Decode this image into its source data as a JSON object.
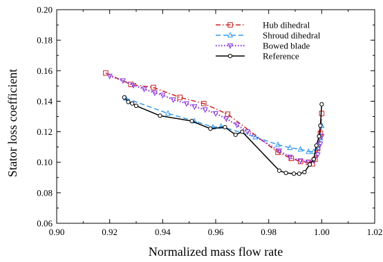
{
  "chart_data": {
    "type": "line",
    "title": "",
    "xlabel": "Normalized mass flow rate",
    "ylabel": "Stator loss coefficient",
    "xlim": [
      0.9,
      1.02
    ],
    "ylim": [
      0.06,
      0.2
    ],
    "xticks": [
      0.9,
      0.92,
      0.94,
      0.96,
      0.98,
      1.0,
      1.02
    ],
    "yticks": [
      0.06,
      0.08,
      0.1,
      0.12,
      0.14,
      0.16,
      0.18,
      0.2
    ],
    "xtick_labels": [
      "0.90",
      "0.92",
      "0.94",
      "0.96",
      "0.98",
      "1.00",
      "1.02"
    ],
    "ytick_labels": [
      "0.06",
      "0.08",
      "0.10",
      "0.12",
      "0.14",
      "0.16",
      "0.18",
      "0.20"
    ],
    "grid": false,
    "legend_position": "top-right",
    "series": [
      {
        "name": "Hub dihedral",
        "color": "#cc2222",
        "dash": "dashdot",
        "marker": "square",
        "x": [
          0.9185,
          0.928,
          0.9365,
          0.9465,
          0.9555,
          0.9645,
          0.9835,
          0.9885,
          0.992,
          0.995,
          0.9965,
          0.9975,
          0.9985,
          0.9995,
          1.0
        ],
        "y": [
          0.1585,
          0.151,
          0.149,
          0.1425,
          0.1385,
          0.1315,
          0.1065,
          0.1025,
          0.1005,
          0.1,
          0.099,
          0.102,
          0.109,
          0.119,
          0.132
        ]
      },
      {
        "name": "Shroud dihedral",
        "color": "#3399ee",
        "dash": "dashed",
        "marker": "triangle",
        "x": [
          0.926,
          0.942,
          0.952,
          0.959,
          0.962,
          0.975,
          0.9835,
          0.988,
          0.992,
          0.995,
          0.997,
          0.9985,
          0.9995,
          1.0
        ],
        "y": [
          0.142,
          0.132,
          0.127,
          0.123,
          0.1235,
          0.1165,
          0.1115,
          0.1095,
          0.1085,
          0.107,
          0.107,
          0.1095,
          0.116,
          0.124
        ]
      },
      {
        "name": "Bowed blade",
        "color": "#8833dd",
        "dash": "dotted",
        "marker": "triangle-down",
        "x": [
          0.92,
          0.925,
          0.929,
          0.933,
          0.937,
          0.94,
          0.944,
          0.949,
          0.952,
          0.956,
          0.96,
          0.964,
          0.968,
          0.972,
          0.984,
          0.988,
          0.992,
          0.995,
          0.997,
          0.9985,
          0.9995,
          1.0
        ],
        "y": [
          0.1565,
          0.1535,
          0.1505,
          0.148,
          0.1455,
          0.144,
          0.141,
          0.1385,
          0.1365,
          0.1345,
          0.132,
          0.1285,
          0.1245,
          0.12,
          0.1075,
          0.1035,
          0.101,
          0.1,
          0.101,
          0.105,
          0.112,
          0.117
        ]
      },
      {
        "name": "Reference",
        "color": "#000000",
        "dash": "solid",
        "marker": "circle",
        "x": [
          0.9255,
          0.927,
          0.9285,
          0.93,
          0.939,
          0.951,
          0.958,
          0.9635,
          0.9675,
          0.97,
          0.984,
          0.9865,
          0.9895,
          0.9915,
          0.9935,
          0.9955,
          0.997,
          0.998,
          0.999,
          0.9995,
          1.0
        ],
        "y": [
          0.1425,
          0.1395,
          0.1385,
          0.137,
          0.1305,
          0.127,
          0.122,
          0.123,
          0.118,
          0.12,
          0.0945,
          0.093,
          0.0925,
          0.0925,
          0.0935,
          0.0985,
          0.102,
          0.111,
          0.117,
          0.124,
          0.138
        ]
      }
    ]
  }
}
